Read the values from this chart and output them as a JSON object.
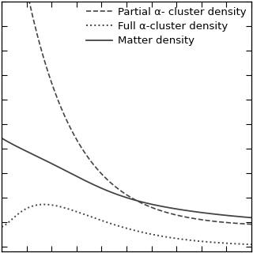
{
  "legend_entries": [
    {
      "label": "Partial α- cluster density",
      "linestyle": "--"
    },
    {
      "label": "Full α-cluster density",
      "linestyle": ":"
    },
    {
      "label": "Matter density",
      "linestyle": "-"
    }
  ],
  "line_color": "#444444",
  "background_color": "#ffffff",
  "legend_fontsize": 9.5,
  "xlim": [
    0,
    1
  ],
  "ylim_min": 0.0,
  "ylim_max": 1.0,
  "x_tick_spacing": 0.1,
  "y_tick_spacing": 0.1
}
